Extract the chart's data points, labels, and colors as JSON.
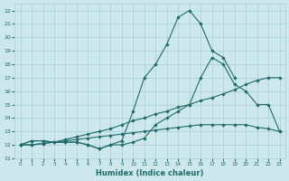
{
  "xlabel": "Humidex (Indice chaleur)",
  "ylabel": "",
  "xlim": [
    -0.5,
    23.5
  ],
  "ylim": [
    11,
    22.5
  ],
  "yticks": [
    11,
    12,
    13,
    14,
    15,
    16,
    17,
    18,
    19,
    20,
    21,
    22
  ],
  "xticks": [
    0,
    1,
    2,
    3,
    4,
    5,
    6,
    7,
    8,
    9,
    10,
    11,
    12,
    13,
    14,
    15,
    16,
    17,
    18,
    19,
    20,
    21,
    22,
    23
  ],
  "bg_color": "#cde8ec",
  "line_color": "#1f6b6b",
  "grid_color": "#aacdd4",
  "line_peak_x": [
    0,
    1,
    2,
    3,
    4,
    5,
    6,
    7,
    8,
    9,
    10,
    11,
    12,
    13,
    14,
    15,
    16,
    17,
    18,
    19
  ],
  "line_peak_y": [
    12,
    12.3,
    12.3,
    12.2,
    12.2,
    12.2,
    12.0,
    11.7,
    12.0,
    12.3,
    14.5,
    17.0,
    18.0,
    19.5,
    21.5,
    22.0,
    21.0,
    19.0,
    18.5,
    17.0
  ],
  "line_mid_x": [
    0,
    1,
    2,
    3,
    4,
    5,
    6,
    7,
    8,
    9,
    10,
    11,
    12,
    13,
    14,
    15,
    16,
    17,
    18,
    19,
    20,
    21,
    22,
    23
  ],
  "line_mid_y": [
    12,
    12.3,
    12.3,
    12.2,
    12.2,
    12.2,
    12.0,
    11.7,
    12.0,
    12.0,
    12.2,
    12.5,
    13.5,
    14.0,
    14.5,
    15.0,
    17.0,
    18.5,
    18.0,
    16.5,
    16.0,
    15.0,
    15.0,
    13.0
  ],
  "line_upper_x": [
    0,
    1,
    2,
    3,
    4,
    5,
    6,
    7,
    8,
    9,
    10,
    11,
    12,
    13,
    14,
    15,
    16,
    17,
    18,
    19,
    20,
    21,
    22,
    23
  ],
  "line_upper_y": [
    12,
    12.0,
    12.1,
    12.2,
    12.4,
    12.6,
    12.8,
    13.0,
    13.2,
    13.5,
    13.8,
    14.0,
    14.3,
    14.5,
    14.8,
    15.0,
    15.3,
    15.5,
    15.8,
    16.1,
    16.5,
    16.8,
    17.0,
    17.0
  ],
  "line_lower_x": [
    0,
    1,
    2,
    3,
    4,
    5,
    6,
    7,
    8,
    9,
    10,
    11,
    12,
    13,
    14,
    15,
    16,
    17,
    18,
    19,
    20,
    21,
    22,
    23
  ],
  "line_lower_y": [
    12,
    12.0,
    12.1,
    12.2,
    12.3,
    12.4,
    12.5,
    12.6,
    12.7,
    12.8,
    12.9,
    13.0,
    13.1,
    13.2,
    13.3,
    13.4,
    13.5,
    13.5,
    13.5,
    13.5,
    13.5,
    13.3,
    13.2,
    13.0
  ]
}
